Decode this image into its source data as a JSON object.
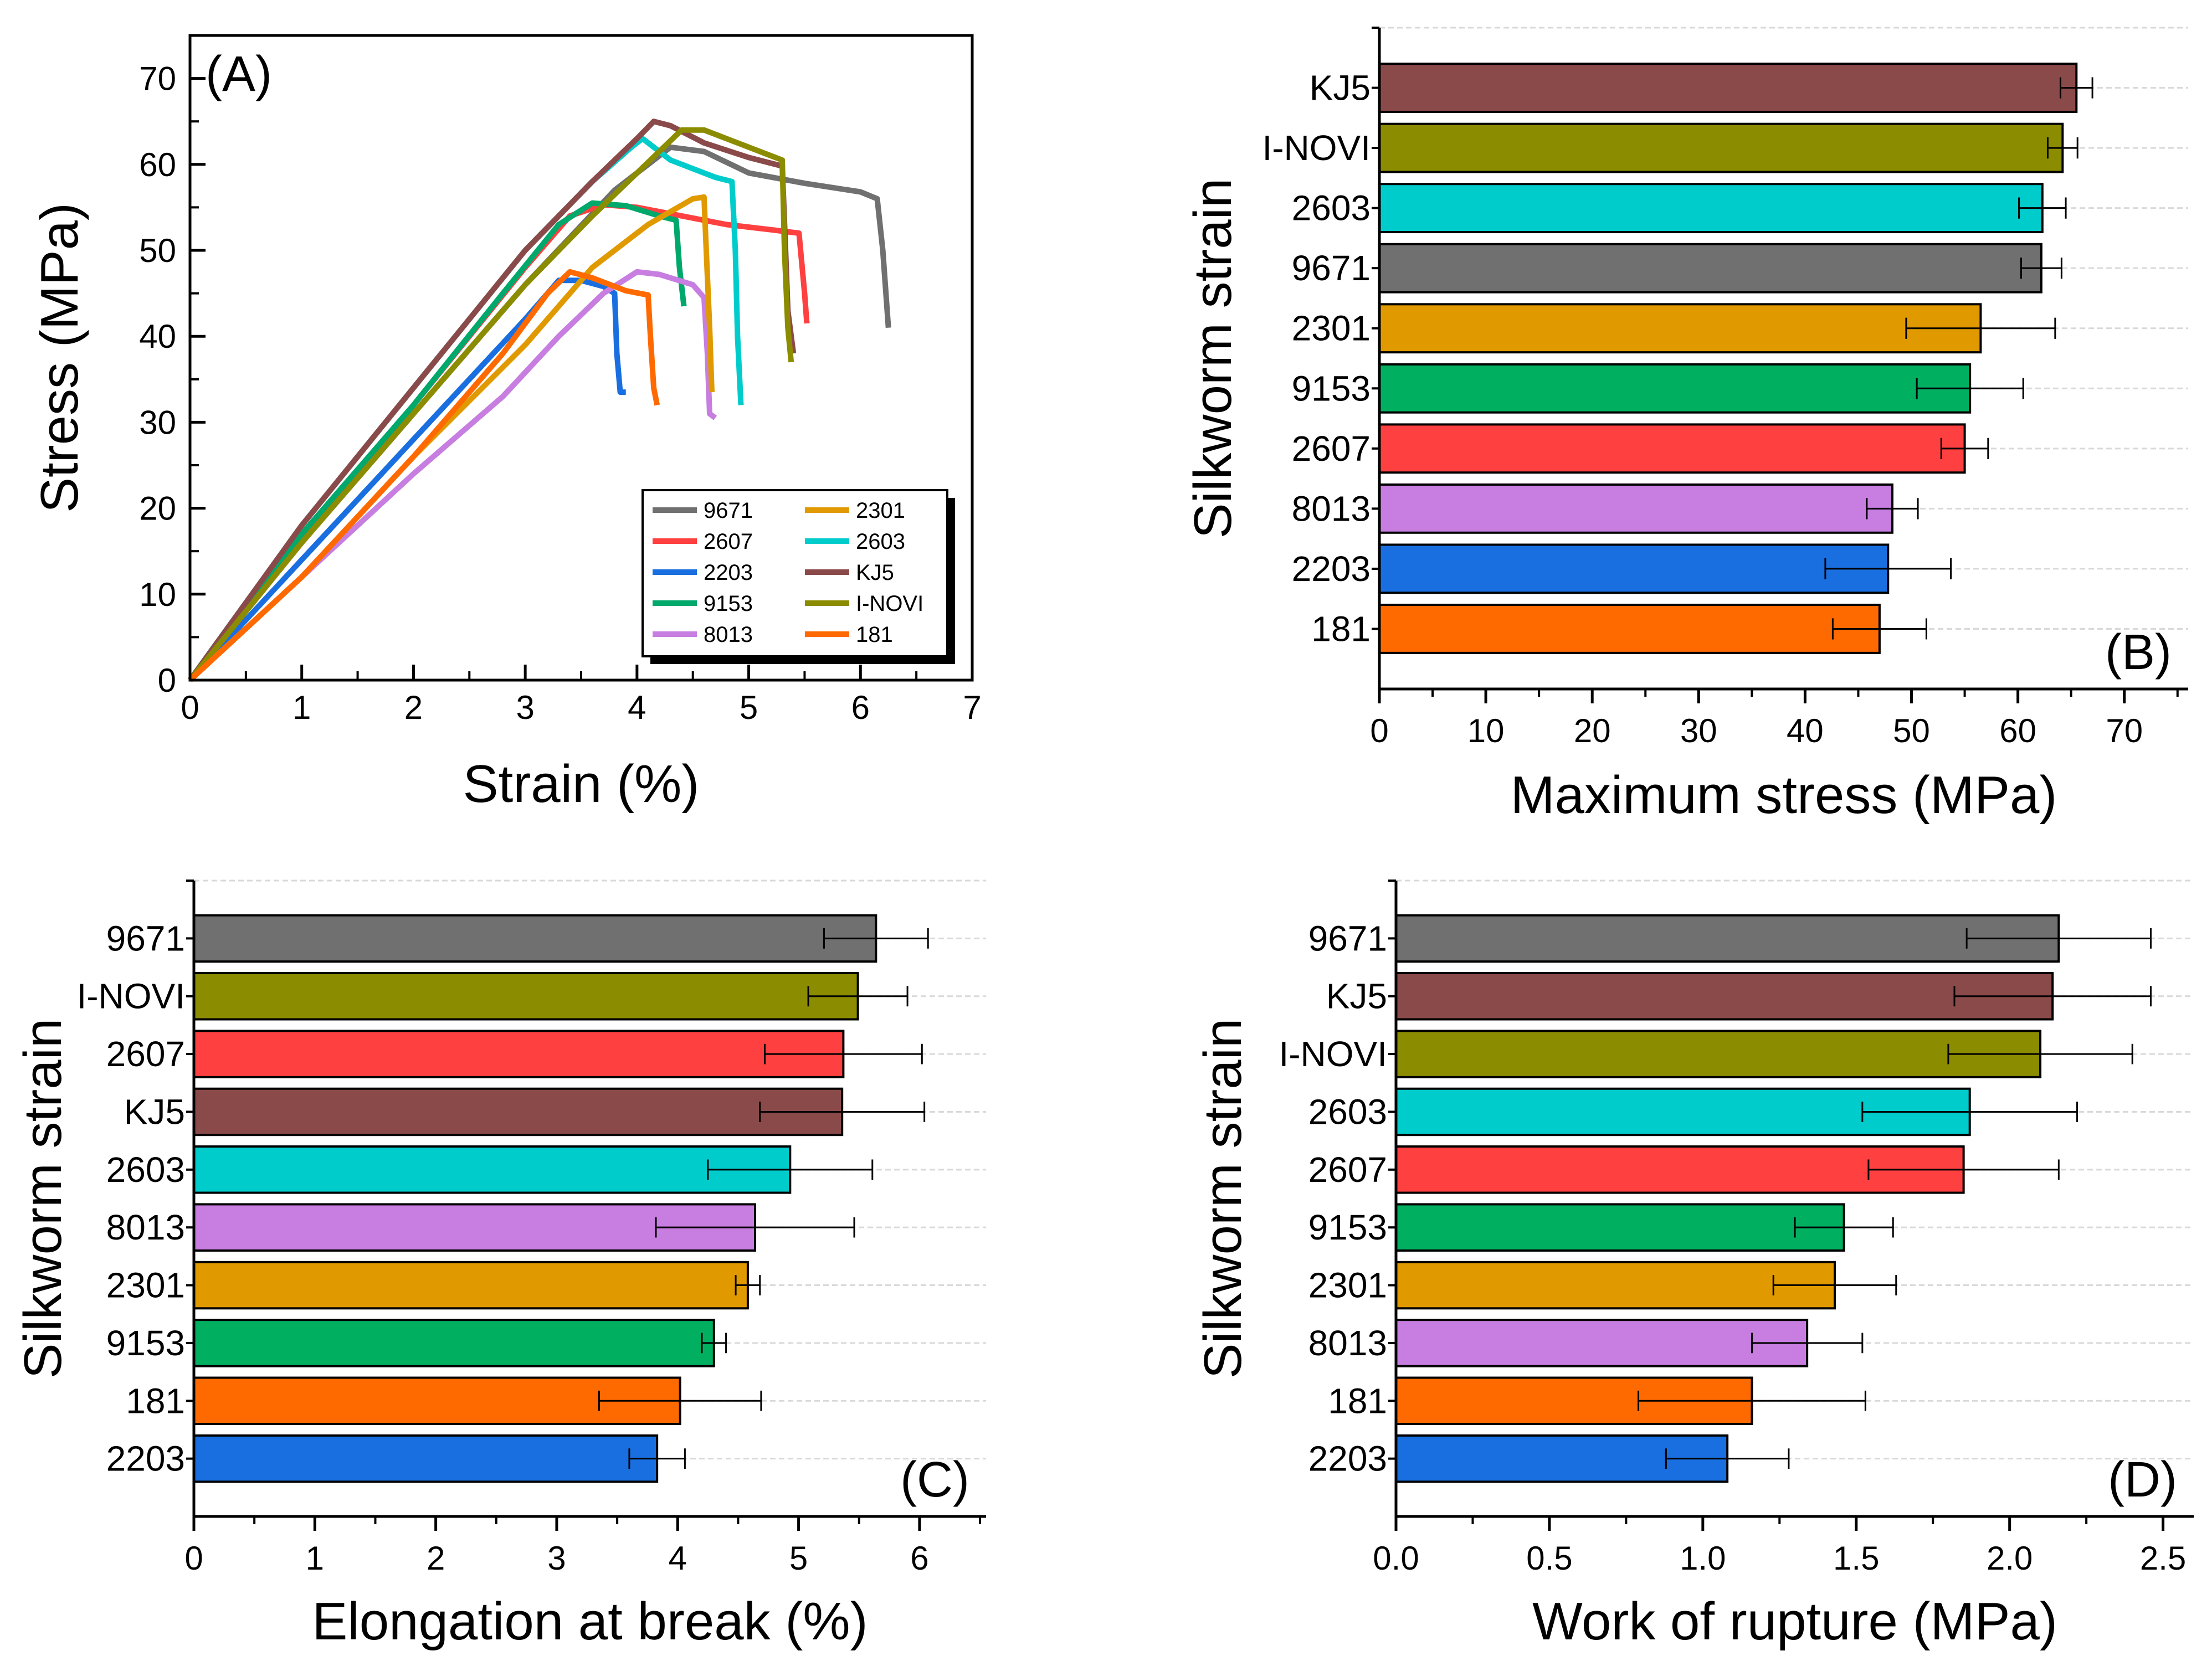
{
  "chart_data": [
    {
      "panel": "A",
      "type": "line",
      "panel_label": "(A)",
      "xlabel": "Strain (%)",
      "ylabel": "Stress (MPa)",
      "xlim": [
        0,
        7
      ],
      "ylim": [
        0,
        75
      ],
      "xticks": [
        0,
        1,
        2,
        3,
        4,
        5,
        6,
        7
      ],
      "yticks": [
        0,
        10,
        20,
        30,
        40,
        50,
        60,
        70
      ],
      "legend_position": "bottom-right",
      "legend_order": [
        "9671",
        "2301",
        "2607",
        "2603",
        "2203",
        "KJ5",
        "9153",
        "I-NOVI",
        "8013",
        "181"
      ],
      "series": [
        {
          "name": "9671",
          "color": "#707070",
          "points": [
            [
              0,
              0
            ],
            [
              0.5,
              8
            ],
            [
              1,
              16
            ],
            [
              2,
              31
            ],
            [
              3,
              46
            ],
            [
              3.8,
              57
            ],
            [
              4.3,
              62
            ],
            [
              4.6,
              61.5
            ],
            [
              5,
              59
            ],
            [
              5.5,
              57.8
            ],
            [
              6,
              56.8
            ],
            [
              6.15,
              56
            ],
            [
              6.2,
              50
            ],
            [
              6.25,
              41
            ]
          ]
        },
        {
          "name": "2607",
          "color": "#ff4040",
          "points": [
            [
              0,
              0
            ],
            [
              0.5,
              8
            ],
            [
              1,
              16
            ],
            [
              2,
              32
            ],
            [
              3,
              48
            ],
            [
              3.4,
              54
            ],
            [
              3.7,
              55.3
            ],
            [
              4,
              55
            ],
            [
              4.4,
              54
            ],
            [
              4.8,
              53
            ],
            [
              5.2,
              52.4
            ],
            [
              5.45,
              52
            ],
            [
              5.5,
              45
            ],
            [
              5.52,
              41.5
            ]
          ]
        },
        {
          "name": "2203",
          "color": "#1a6fe0",
          "points": [
            [
              0,
              0
            ],
            [
              0.5,
              7
            ],
            [
              1,
              14
            ],
            [
              2,
              28
            ],
            [
              3,
              42
            ],
            [
              3.3,
              46.5
            ],
            [
              3.5,
              46.5
            ],
            [
              3.7,
              45.8
            ],
            [
              3.8,
              45
            ],
            [
              3.82,
              38
            ],
            [
              3.85,
              33.5
            ],
            [
              3.9,
              33.5
            ]
          ]
        },
        {
          "name": "9153",
          "color": "#00a86b",
          "points": [
            [
              0,
              0
            ],
            [
              0.5,
              9
            ],
            [
              1,
              17
            ],
            [
              2,
              32
            ],
            [
              2.8,
              45
            ],
            [
              3.3,
              53
            ],
            [
              3.6,
              55.5
            ],
            [
              3.9,
              55.2
            ],
            [
              4.2,
              54
            ],
            [
              4.35,
              53.5
            ],
            [
              4.38,
              48
            ],
            [
              4.42,
              43.5
            ]
          ]
        },
        {
          "name": "8013",
          "color": "#c77ee0",
          "points": [
            [
              0,
              0
            ],
            [
              0.5,
              6
            ],
            [
              1,
              12
            ],
            [
              2,
              24
            ],
            [
              2.8,
              33
            ],
            [
              3.3,
              40
            ],
            [
              3.7,
              45
            ],
            [
              4,
              47.5
            ],
            [
              4.2,
              47.2
            ],
            [
              4.5,
              46
            ],
            [
              4.6,
              44.5
            ],
            [
              4.63,
              38
            ],
            [
              4.65,
              31
            ],
            [
              4.7,
              30.5
            ]
          ]
        },
        {
          "name": "2301",
          "color": "#e09a00",
          "points": [
            [
              0,
              0
            ],
            [
              0.5,
              6
            ],
            [
              1,
              12
            ],
            [
              2,
              26
            ],
            [
              3,
              39
            ],
            [
              3.6,
              48
            ],
            [
              4.1,
              53
            ],
            [
              4.5,
              56
            ],
            [
              4.6,
              56.2
            ],
            [
              4.62,
              50
            ],
            [
              4.65,
              41
            ],
            [
              4.67,
              33.5
            ]
          ]
        },
        {
          "name": "2603",
          "color": "#00cccc",
          "points": [
            [
              0,
              0
            ],
            [
              0.5,
              9
            ],
            [
              1,
              18
            ],
            [
              2,
              34
            ],
            [
              3,
              50
            ],
            [
              3.6,
              58
            ],
            [
              3.95,
              62
            ],
            [
              4.05,
              63
            ],
            [
              4.3,
              60.5
            ],
            [
              4.7,
              58.5
            ],
            [
              4.85,
              58
            ],
            [
              4.88,
              50
            ],
            [
              4.9,
              40
            ],
            [
              4.93,
              32
            ]
          ]
        },
        {
          "name": "KJ5",
          "color": "#8b4a4a",
          "points": [
            [
              0,
              0
            ],
            [
              0.5,
              9
            ],
            [
              1,
              18
            ],
            [
              2,
              34
            ],
            [
              3,
              50
            ],
            [
              3.6,
              58
            ],
            [
              4.0,
              63
            ],
            [
              4.15,
              65
            ],
            [
              4.3,
              64.5
            ],
            [
              4.6,
              62.5
            ],
            [
              5.0,
              60.8
            ],
            [
              5.3,
              59.8
            ],
            [
              5.33,
              50
            ],
            [
              5.35,
              43
            ],
            [
              5.4,
              38
            ]
          ]
        },
        {
          "name": "I-NOVI",
          "color": "#8c8c00",
          "points": [
            [
              0,
              0
            ],
            [
              0.5,
              8
            ],
            [
              1,
              16
            ],
            [
              2,
              31
            ],
            [
              3,
              46
            ],
            [
              3.6,
              54
            ],
            [
              4.0,
              59
            ],
            [
              4.4,
              64
            ],
            [
              4.6,
              64
            ],
            [
              4.9,
              62.5
            ],
            [
              5.2,
              61
            ],
            [
              5.3,
              60.5
            ],
            [
              5.32,
              50
            ],
            [
              5.35,
              41
            ],
            [
              5.38,
              37
            ]
          ]
        },
        {
          "name": "181",
          "color": "#ff6a00",
          "points": [
            [
              0,
              0
            ],
            [
              0.5,
              6
            ],
            [
              1,
              12
            ],
            [
              2,
              26
            ],
            [
              2.8,
              38
            ],
            [
              3.2,
              45
            ],
            [
              3.4,
              47.5
            ],
            [
              3.6,
              46.8
            ],
            [
              3.9,
              45.3
            ],
            [
              4.1,
              44.8
            ],
            [
              4.12,
              40
            ],
            [
              4.15,
              34
            ],
            [
              4.18,
              32
            ]
          ]
        }
      ]
    },
    {
      "panel": "B",
      "type": "bar",
      "orientation": "horizontal",
      "panel_label": "(B)",
      "xlabel": "Maximum stress (MPa)",
      "ylabel": "Silkworm strain",
      "xlim": [
        0,
        76
      ],
      "xticks": [
        0,
        10,
        20,
        30,
        40,
        50,
        60,
        70
      ],
      "categories": [
        "KJ5",
        "I-NOVI",
        "2603",
        "9671",
        "2301",
        "9153",
        "2607",
        "8013",
        "2203",
        "181"
      ],
      "values": [
        65.5,
        64.2,
        62.3,
        62.2,
        56.5,
        55.5,
        55.0,
        48.2,
        47.8,
        47.0
      ],
      "errors": [
        1.5,
        1.4,
        2.2,
        1.9,
        7.0,
        5.0,
        2.2,
        2.4,
        5.9,
        4.4
      ],
      "colors": [
        "#8b4a4a",
        "#8c8c00",
        "#00cccc",
        "#707070",
        "#e09a00",
        "#00b060",
        "#ff4040",
        "#c77ee0",
        "#1a6fe0",
        "#ff6a00"
      ]
    },
    {
      "panel": "C",
      "type": "bar",
      "orientation": "horizontal",
      "panel_label": "(C)",
      "xlabel": "Elongation at break (%)",
      "ylabel": "Silkworm strain",
      "xlim": [
        0,
        6.55
      ],
      "xticks": [
        0,
        1,
        2,
        3,
        4,
        5,
        6
      ],
      "categories": [
        "9671",
        "I-NOVI",
        "2607",
        "KJ5",
        "2603",
        "8013",
        "2301",
        "9153",
        "181",
        "2203"
      ],
      "values": [
        5.64,
        5.49,
        5.37,
        5.36,
        4.93,
        4.64,
        4.58,
        4.3,
        4.02,
        3.83
      ],
      "errors": [
        0.43,
        0.41,
        0.65,
        0.68,
        0.68,
        0.82,
        0.1,
        0.1,
        0.67,
        0.23
      ],
      "colors": [
        "#707070",
        "#8c8c00",
        "#ff4040",
        "#8b4a4a",
        "#00cccc",
        "#c77ee0",
        "#e09a00",
        "#00b060",
        "#ff6a00",
        "#1a6fe0"
      ]
    },
    {
      "panel": "D",
      "type": "bar",
      "orientation": "horizontal",
      "panel_label": "(D)",
      "xlabel": "Work of rupture (MPa)",
      "ylabel": "Silkworm strain",
      "xlim": [
        0,
        2.6
      ],
      "xticks": [
        0.0,
        0.5,
        1.0,
        1.5,
        2.0,
        2.5
      ],
      "xtick_labels": [
        "0.0",
        "0.5",
        "1.0",
        "1.5",
        "2.0",
        "2.5"
      ],
      "categories": [
        "9671",
        "KJ5",
        "I-NOVI",
        "2603",
        "2607",
        "9153",
        "2301",
        "8013",
        "181",
        "2203"
      ],
      "values": [
        2.16,
        2.14,
        2.1,
        1.87,
        1.85,
        1.46,
        1.43,
        1.34,
        1.16,
        1.08
      ],
      "errors": [
        0.3,
        0.32,
        0.3,
        0.35,
        0.31,
        0.16,
        0.2,
        0.18,
        0.37,
        0.2
      ],
      "colors": [
        "#707070",
        "#8b4a4a",
        "#8c8c00",
        "#00cccc",
        "#ff4040",
        "#00b060",
        "#e09a00",
        "#c77ee0",
        "#ff6a00",
        "#1a6fe0"
      ]
    }
  ]
}
